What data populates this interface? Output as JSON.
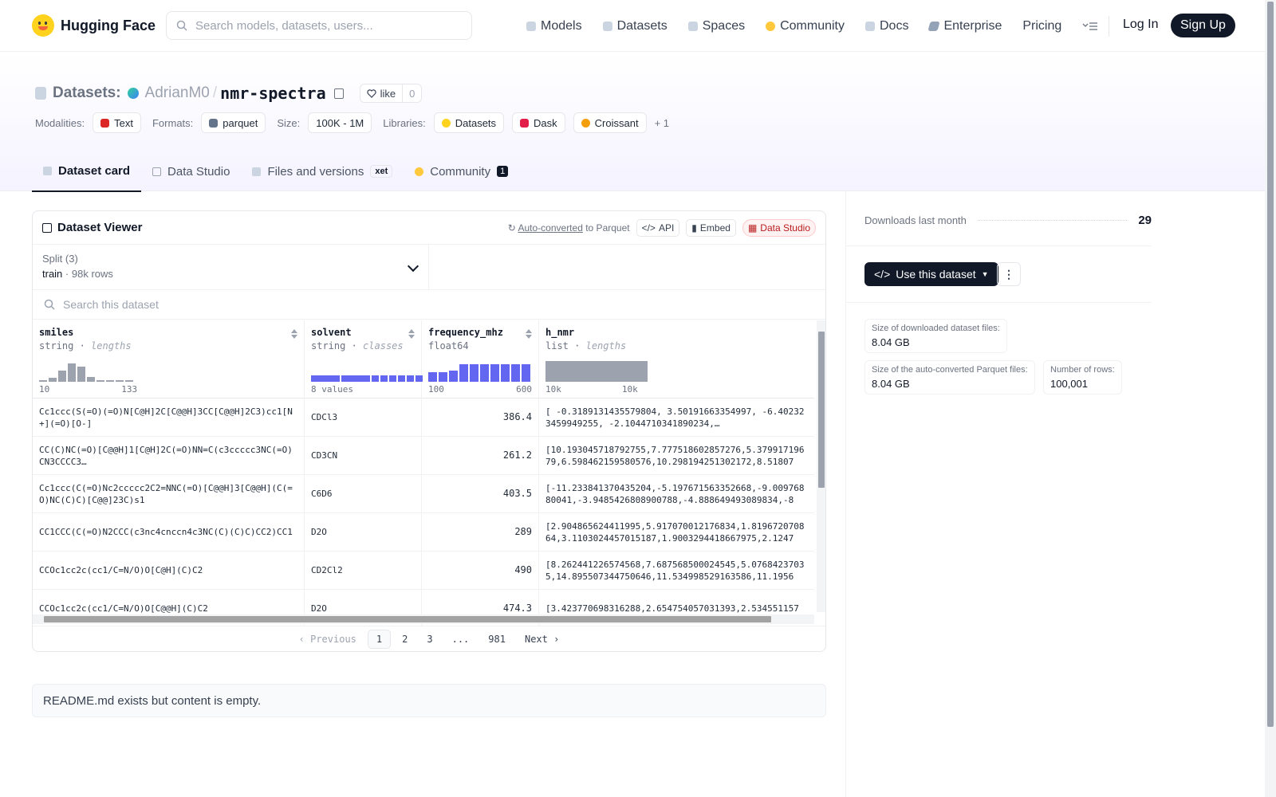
{
  "header": {
    "brand": "Hugging Face",
    "search_placeholder": "Search models, datasets, users...",
    "nav": [
      {
        "label": "Models",
        "icon": "cube-icon"
      },
      {
        "label": "Datasets",
        "icon": "database-icon"
      },
      {
        "label": "Spaces",
        "icon": "grid-icon"
      },
      {
        "label": "Community",
        "icon": "community-icon"
      },
      {
        "label": "Docs",
        "icon": "book-icon"
      },
      {
        "label": "Enterprise",
        "icon": "enterprise-icon"
      },
      {
        "label": "Pricing",
        "icon": ""
      }
    ],
    "login": "Log In",
    "signup": "Sign Up"
  },
  "repo": {
    "section": "Datasets:",
    "owner": "AdrianM0",
    "name": "nmr-spectra",
    "like_label": "like",
    "like_count": "0"
  },
  "meta": {
    "modalities_label": "Modalities:",
    "modality": "Text",
    "formats_label": "Formats:",
    "format": "parquet",
    "size_label": "Size:",
    "size": "100K - 1M",
    "libraries_label": "Libraries:",
    "libraries": [
      "Datasets",
      "Dask",
      "Croissant"
    ],
    "more": "+ 1"
  },
  "tabs": [
    {
      "label": "Dataset card"
    },
    {
      "label": "Data Studio"
    },
    {
      "label": "Files and versions",
      "badge": "xet"
    },
    {
      "label": "Community",
      "badge": "1"
    }
  ],
  "viewer": {
    "title": "Dataset Viewer",
    "autoconv": "Auto-converted",
    "autoconv_suffix": "to Parquet",
    "api": "API",
    "embed": "Embed",
    "studio": "Data Studio",
    "split_label": "Split (3)",
    "split_name": "train",
    "split_rows": "98k rows",
    "search_placeholder": "Search this dataset",
    "columns": [
      {
        "name": "smiles",
        "type": "string",
        "stat": "lengths",
        "axis_min": "10",
        "axis_max": "133",
        "hist": [
          0.05,
          0.2,
          0.55,
          0.9,
          0.75,
          0.25,
          0.08,
          0.04,
          0.03,
          0.02
        ]
      },
      {
        "name": "solvent",
        "type": "string",
        "stat": "classes",
        "axis_min": "8 values",
        "axis_max": "",
        "hist": [
          0.3,
          0.3,
          0.3,
          0.3,
          0.3,
          0.3,
          0.3,
          0.3
        ]
      },
      {
        "name": "frequency_mhz",
        "type": "float64",
        "stat": "",
        "axis_min": "100",
        "axis_max": "600",
        "hist": [
          0.45,
          0.45,
          0.55,
          0.85,
          0.85,
          0.85,
          0.85,
          0.85,
          0.85,
          0.85
        ]
      },
      {
        "name": "h_nmr",
        "type": "list",
        "stat": "lengths",
        "axis_min": "10k",
        "axis_max": "10k",
        "hist": [
          1.0
        ]
      }
    ],
    "rows": [
      {
        "smiles": "Cc1ccc(S(=O)(=O)N[C@H]2C[C@@H]3CC[C@@H]2C3)cc1[N+](=O)[O-]",
        "solvent": "CDCl3",
        "freq": "386.4",
        "h_nmr": "[ -0.3189131435579804, 3.50191663354997, -6.402323459949255, -2.1044710341890234,…"
      },
      {
        "smiles": "CC(C)NC(=O)[C@@H]1[C@H]2C(=O)NN=C(c3ccccc3NC(=O)CN3CCCC3…",
        "solvent": "CD3CN",
        "freq": "261.2",
        "h_nmr": "[10.193045718792755,7.777518602857276,5.37991719679,6.598462159580576,10.298194251302172,8.51807"
      },
      {
        "smiles": "Cc1ccc(C(=O)Nc2ccccc2C2=NNC(=O)[C@@H]3[C@@H](C(=O)NC(C)C)[C@@]23C)s1",
        "solvent": "C6D6",
        "freq": "403.5",
        "h_nmr": "[-11.233841370435204,-5.197671563352668,-9.00976880041,-3.9485426808900788,-4.888649493089834,-8"
      },
      {
        "smiles": "CC1CCC(C(=O)N2CCC(c3nc4cnccn4c3NC(C)(C)C)CC2)CC1",
        "solvent": "D2O",
        "freq": "289",
        "h_nmr": "[2.904865624411995,5.917070012176834,1.819672070864,3.1103024457015187,1.9003294418667975,2.1247"
      },
      {
        "smiles": "CCOc1cc2c(cc1/C=N/O)O[C@H](C)C2",
        "solvent": "CD2Cl2",
        "freq": "490",
        "h_nmr": "[8.262441226574568,7.687568500024545,5.07684237035,14.895507344750646,11.534998529163586,11.1956"
      },
      {
        "smiles": "CCOc1cc2c(cc1/C=N/O)O[C@@H](C)C2",
        "solvent": "D2O",
        "freq": "474.3",
        "h_nmr": "[3.423770698316288,2.654754057031393,2.534551157"
      }
    ],
    "pager": {
      "prev": "Previous",
      "pages": [
        "1",
        "2",
        "3",
        "...",
        "981"
      ],
      "next": "Next"
    }
  },
  "readme": "README.md exists but content is empty.",
  "sidebar": {
    "downloads_label": "Downloads last month",
    "downloads": "29",
    "use_button": "Use this dataset",
    "size_dl_label": "Size of downloaded dataset files:",
    "size_dl": "8.04 GB",
    "size_parquet_label": "Size of the auto-converted Parquet files:",
    "size_parquet": "8.04 GB",
    "rows_label": "Number of rows:",
    "rows": "100,001"
  }
}
